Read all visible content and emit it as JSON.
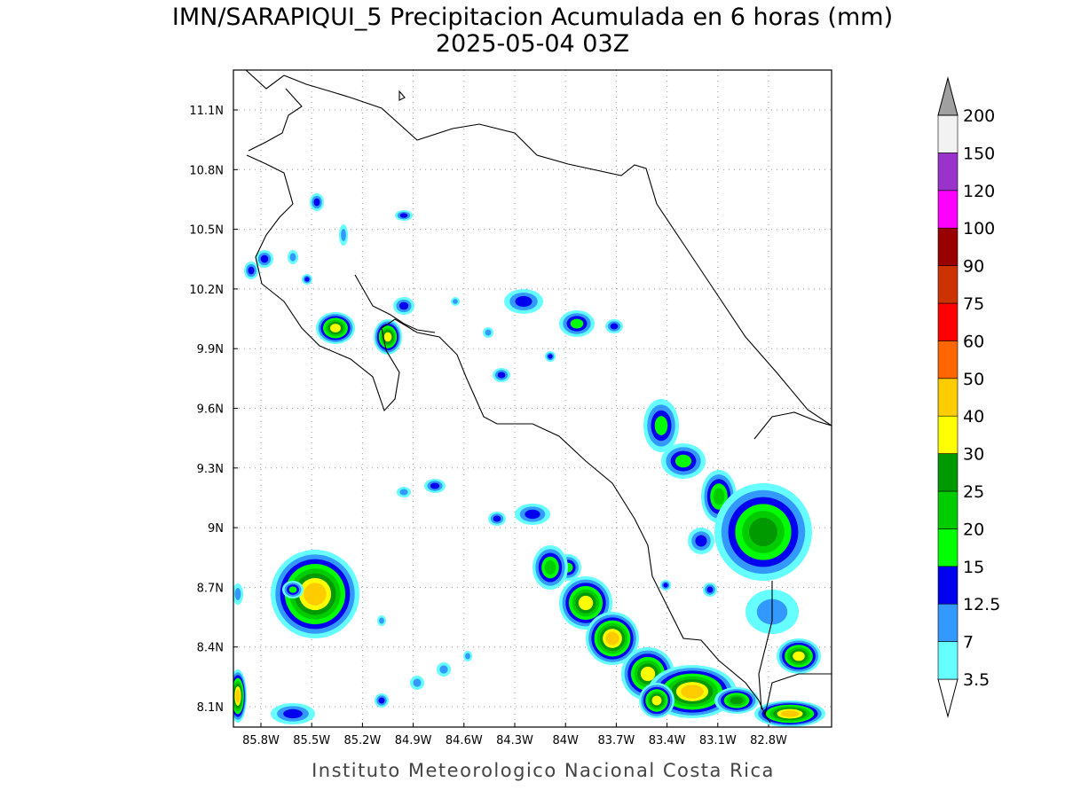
{
  "header": {
    "title": "IMN/SARAPIQUI_5 Precipitacion Acumulada en 6 horas (mm)",
    "subtitle": "2025-05-04 03Z"
  },
  "map": {
    "lon_ticks": [
      "85.8W",
      "85.5W",
      "85.2W",
      "84.9W",
      "84.6W",
      "84.3W",
      "84W",
      "83.7W",
      "83.4W",
      "83.1W",
      "82.8W"
    ],
    "lat_ticks": [
      "11.1N",
      "10.8N",
      "10.5N",
      "10.2N",
      "9.9N",
      "9.6N",
      "9.3N",
      "9N",
      "8.7N",
      "8.4N",
      "8.1N"
    ]
  },
  "legend": {
    "levels": [
      3.5,
      7,
      12.5,
      15,
      20,
      25,
      30,
      40,
      50,
      60,
      75,
      90,
      100,
      120,
      150,
      200
    ],
    "colors": [
      "#66ffff",
      "#3399ff",
      "#0000ee",
      "#00ff00",
      "#00cc00",
      "#009900",
      "#ffff00",
      "#ffcc00",
      "#ff6600",
      "#ff0000",
      "#cc3300",
      "#990000",
      "#ff00ff",
      "#9933cc",
      "#f2f2f2",
      "#a0a0a0"
    ]
  },
  "footer": "Instituto Meteorologico Nacional Costa Rica"
}
